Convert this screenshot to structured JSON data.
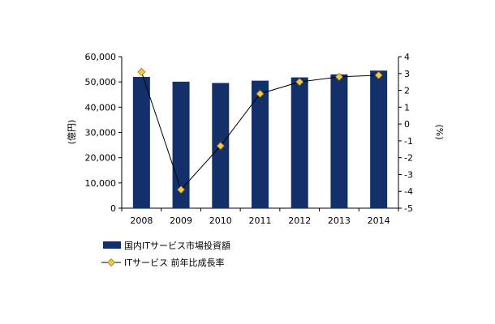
{
  "chart_data": {
    "type": "bar",
    "categories": [
      "2008",
      "2009",
      "2010",
      "2011",
      "2012",
      "2013",
      "2014"
    ],
    "series": [
      {
        "name": "国内ITサービス市場投資額",
        "type": "bar",
        "axis": "left",
        "color": "#14306b",
        "values": [
          52000,
          50100,
          49600,
          50500,
          51800,
          53000,
          54500
        ]
      },
      {
        "name": "ITサービス 前年比成長率",
        "type": "line",
        "axis": "right",
        "color": "#f5c842",
        "line_color": "#000000",
        "values": [
          3.1,
          -3.9,
          -1.3,
          1.8,
          2.5,
          2.8,
          2.9
        ]
      }
    ],
    "y_left": {
      "label": "(億円)",
      "ylim": [
        0,
        60000
      ],
      "ticks": [
        "0",
        "10,000",
        "20,000",
        "30,000",
        "40,000",
        "50,000",
        "60,000"
      ]
    },
    "y_right": {
      "label": "(%)",
      "ylim": [
        -5,
        4
      ],
      "ticks": [
        "-5",
        "-4",
        "-3",
        "-2",
        "-1",
        "0",
        "1",
        "2",
        "3",
        "4"
      ]
    },
    "legend_position": "bottom",
    "grid": false
  }
}
